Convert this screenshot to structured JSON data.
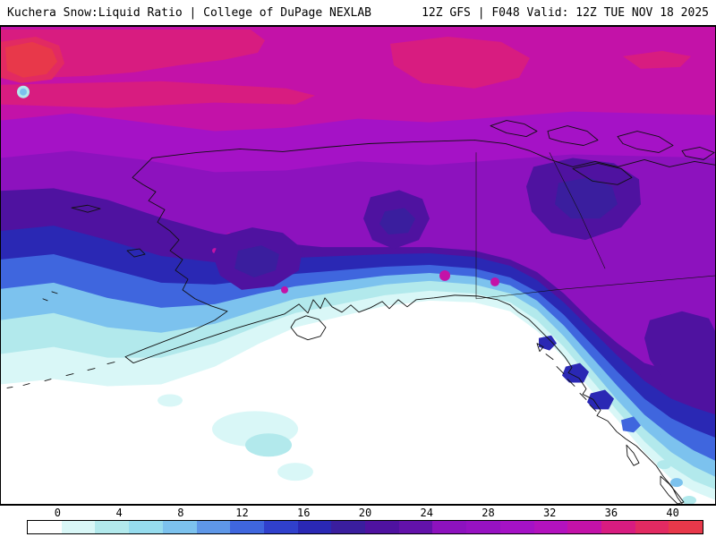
{
  "header": {
    "left_title": "Kuchera Snow:Liquid Ratio | College of DuPage NEXLAB",
    "right_title": "12Z GFS | F048 Valid: 12Z TUE NOV 18 2025"
  },
  "chart_data": {
    "type": "heatmap",
    "title": "Kuchera Snow:Liquid Ratio",
    "source": "College of DuPage NEXLAB",
    "model": "GFS",
    "run": "12Z",
    "forecast_hour": "F048",
    "valid_time": "12Z TUE NOV 18 2025",
    "region": "Alaska, Bering Sea, Gulf of Alaska, northwestern Canada",
    "legend_position": "bottom",
    "colorbar": {
      "min": 0,
      "max": 40,
      "cell_step": 2,
      "tick_step": 4,
      "ticks": [
        0,
        4,
        8,
        12,
        16,
        20,
        24,
        28,
        32,
        36,
        40
      ],
      "colors": [
        "#ffffff",
        "#d9f7f7",
        "#b2e9ec",
        "#96dcee",
        "#7cc2ee",
        "#5e97e8",
        "#3f66de",
        "#3040cc",
        "#2a28b4",
        "#3a1e9e",
        "#4f12a0",
        "#6312aa",
        "#8d12be",
        "#9712c2",
        "#a512c6",
        "#b312be",
        "#c312a8",
        "#d81c80",
        "#e22a62",
        "#e8384a"
      ]
    },
    "regions_depicted": [
      {
        "area": "Arctic coast, far northern Alaska and Yukon",
        "ratio_range": "30-36"
      },
      {
        "area": "Local maximum near top-left corner",
        "ratio_range": "36-40"
      },
      {
        "area": "Interior Alaska and northwest Canada",
        "ratio_range": "20-30"
      },
      {
        "area": "Dark violet pockets in the interior",
        "ratio_range": "16-20"
      },
      {
        "area": "Southwest Alaska and Bering Sea coast",
        "ratio_range": "8-20"
      },
      {
        "area": "Alaska Peninsula, Kodiak and nearshore waters",
        "ratio_range": "2-8"
      },
      {
        "area": "Gulf of Alaska open water",
        "ratio_range": "0-2"
      },
      {
        "area": "Southeast Alaska panhandle and BC coast",
        "ratio_range": "2-16"
      }
    ]
  }
}
